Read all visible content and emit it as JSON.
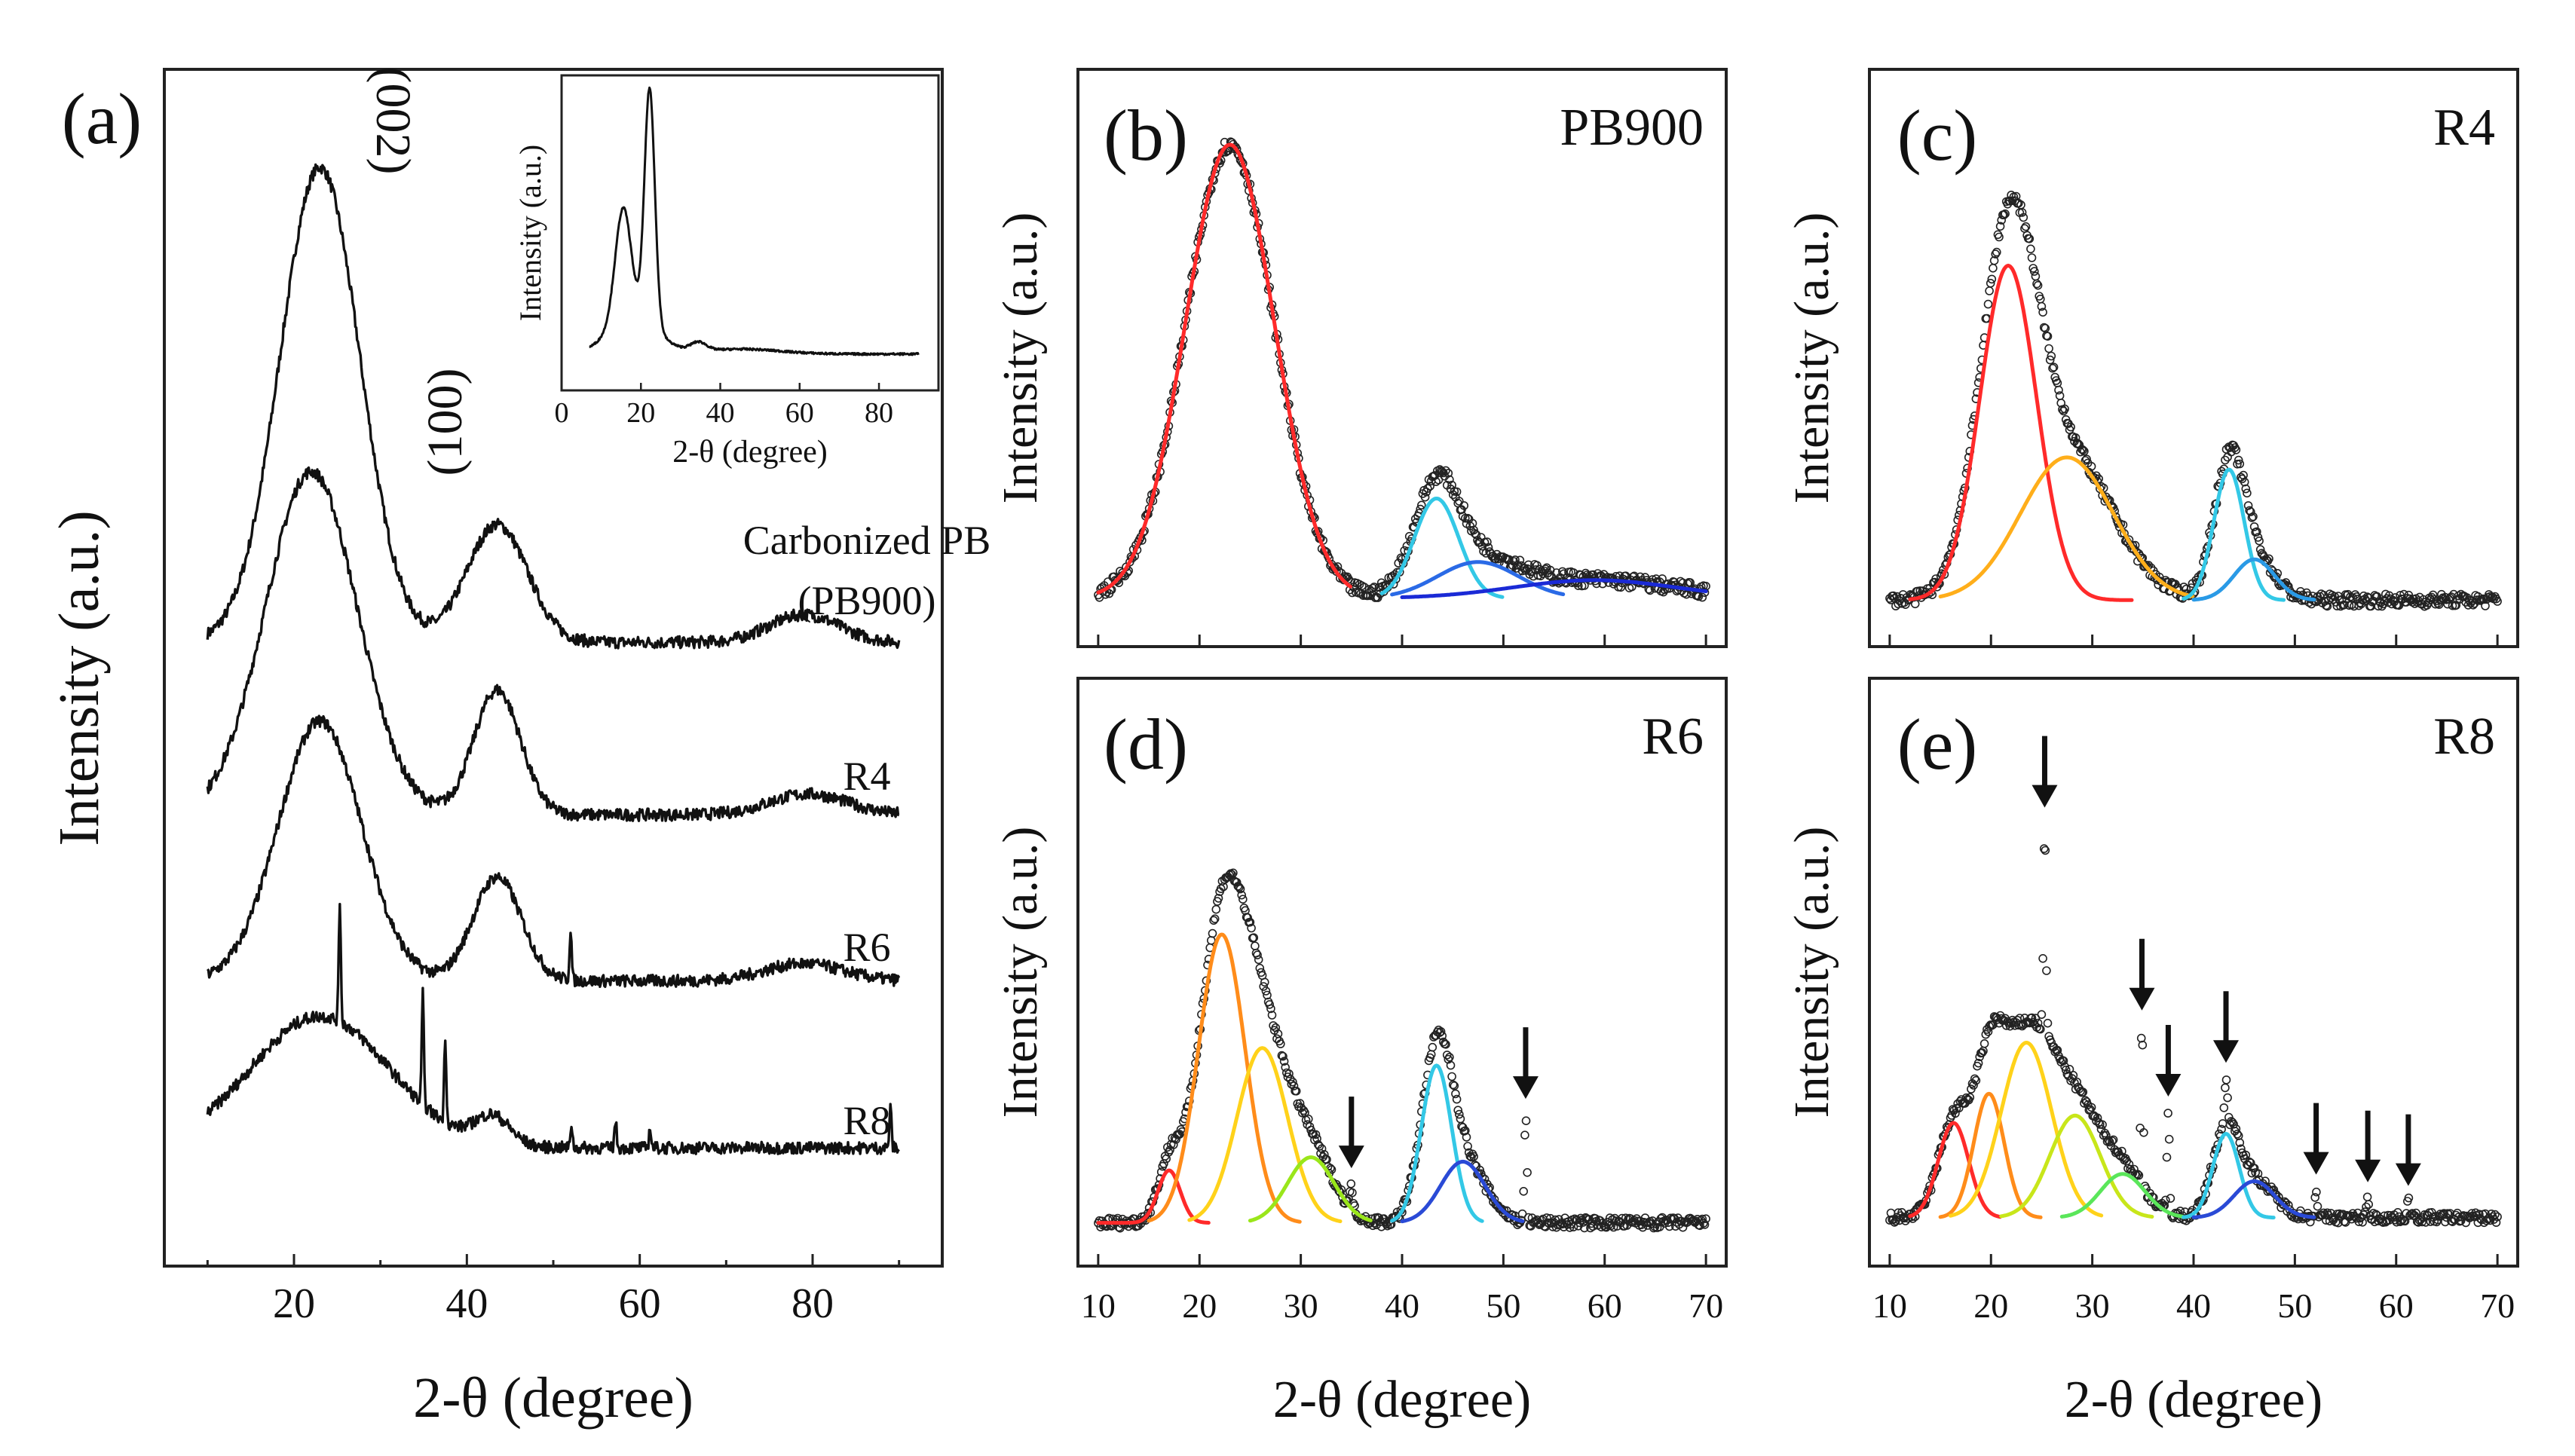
{
  "chart_data": [
    {
      "panel": "(a)",
      "type": "line",
      "xlabel": "2-θ (degree)",
      "ylabel": "Intensity (a.u.)",
      "xlim": [
        5,
        95
      ],
      "xticks": [
        20,
        40,
        60,
        80
      ],
      "peak_labels": [
        {
          "text": "(002)",
          "x": 22
        },
        {
          "text": "(100)",
          "x": 43
        }
      ],
      "series": [
        {
          "name": "PB900",
          "label_lines": [
            "Carbonized PB",
            "(PB900)"
          ],
          "x_range": [
            10,
            90
          ],
          "base": 0.6,
          "peaks": [
            [
              23,
              13.7,
              4.6
            ],
            [
              43.5,
              3.4,
              3.5
            ],
            [
              79,
              0.8,
              4
            ]
          ]
        },
        {
          "name": "R4",
          "label_lines": [
            "R4"
          ],
          "x_range": [
            10,
            90
          ],
          "base": 0.3,
          "peaks": [
            [
              22,
              9.9,
              5.3
            ],
            [
              43.5,
              3.6,
              2.7
            ],
            [
              79.5,
              0.6,
              4.5
            ]
          ]
        },
        {
          "name": "R6",
          "label_lines": [
            "R6"
          ],
          "x_range": [
            10,
            90
          ],
          "base": 0.4,
          "peaks": [
            [
              23,
              7.5,
              4.8
            ],
            [
              43.5,
              3.0,
              2.8
            ],
            [
              79,
              0.5,
              4.5
            ]
          ],
          "spikes": [
            [
              52,
              1.5
            ]
          ]
        },
        {
          "name": "R8",
          "label_lines": [
            "R8"
          ],
          "x_range": [
            10,
            90
          ],
          "base": 0.8,
          "peaks": [
            [
              23,
              3.8,
              8
            ],
            [
              43,
              0.8,
              2
            ]
          ],
          "spikes": [
            [
              25.3,
              3.5
            ],
            [
              34.9,
              3.2
            ],
            [
              37.5,
              2.5
            ],
            [
              52.1,
              0.7
            ],
            [
              57.2,
              0.8
            ],
            [
              61.2,
              0.6
            ],
            [
              89,
              1.2
            ]
          ]
        }
      ],
      "inset": {
        "xlabel": "2-θ (degree)",
        "ylabel": "Intensity (a.u.)",
        "xlim": [
          0,
          95
        ],
        "xticks": [
          0,
          20,
          40,
          60,
          80
        ],
        "base": 0.04,
        "peaks": [
          [
            15.5,
            0.45,
            2
          ],
          [
            22.2,
            0.95,
            1.3
          ],
          [
            18,
            0.15,
            6
          ],
          [
            34.5,
            0.035,
            2
          ],
          [
            45,
            0.02,
            10
          ]
        ]
      }
    },
    {
      "panel": "(b)",
      "type": "line",
      "title": "PB900",
      "ylabel": "Intensity (a.u.)",
      "xlim": [
        8,
        72
      ],
      "raw": {
        "x_range": [
          10,
          70
        ],
        "base": 0.04,
        "peaks": [
          [
            23,
            1.0,
            4.4
          ],
          [
            43.4,
            0.22,
            2.2
          ],
          [
            47.5,
            0.08,
            4
          ],
          [
            59,
            0.04,
            8
          ]
        ]
      },
      "fits": [
        {
          "name": "fit-1",
          "color": "#ff2a2a",
          "center": 23,
          "height": 1.0,
          "width": 4.4,
          "x_range": [
            10,
            35
          ]
        },
        {
          "name": "fit-2",
          "color": "#33c8e6",
          "center": 43.4,
          "height": 0.22,
          "width": 2.2,
          "x_range": [
            38,
            50
          ]
        },
        {
          "name": "fit-3",
          "color": "#2a6ae6",
          "center": 47.5,
          "height": 0.08,
          "width": 4,
          "x_range": [
            39,
            56
          ]
        },
        {
          "name": "fit-4",
          "color": "#1a2ad6",
          "center": 59,
          "height": 0.04,
          "width": 8,
          "x_range": [
            40,
            70
          ]
        }
      ]
    },
    {
      "panel": "(c)",
      "type": "line",
      "title": "R4",
      "ylabel": "Intensity (a.u.)",
      "xlim": [
        8,
        72
      ],
      "raw": {
        "x_range": [
          10,
          70
        ],
        "base": 0.04,
        "peaks": [
          [
            21.7,
            0.82,
            2.8
          ],
          [
            27.5,
            0.35,
            4.6
          ],
          [
            43.5,
            0.32,
            1.5
          ],
          [
            46,
            0.1,
            2
          ]
        ]
      },
      "fits": [
        {
          "name": "fit-1",
          "color": "#ff2a2a",
          "center": 21.7,
          "height": 0.82,
          "width": 2.8,
          "x_range": [
            12,
            34
          ]
        },
        {
          "name": "fit-2",
          "color": "#ffae1a",
          "center": 27.5,
          "height": 0.35,
          "width": 4.6,
          "x_range": [
            15,
            40
          ]
        },
        {
          "name": "fit-3",
          "color": "#33c8e6",
          "center": 43.5,
          "height": 0.32,
          "width": 1.5,
          "x_range": [
            39,
            49
          ]
        },
        {
          "name": "fit-4",
          "color": "#2a9ae6",
          "center": 46,
          "height": 0.1,
          "width": 2,
          "x_range": [
            40,
            52
          ]
        }
      ]
    },
    {
      "panel": "(d)",
      "type": "line",
      "title": "R6",
      "xlabel": "2-θ (degree)",
      "ylabel": "Intensity (a.u.)",
      "xlim": [
        8,
        72
      ],
      "xticks": [
        10,
        20,
        30,
        40,
        50,
        60,
        70
      ],
      "raw": {
        "x_range": [
          10,
          70
        ],
        "base": 0.03,
        "peaks": [
          [
            17,
            0.12,
            1.1
          ],
          [
            22.2,
            0.66,
            2.3
          ],
          [
            26.2,
            0.4,
            2.5
          ],
          [
            31,
            0.15,
            2.3
          ],
          [
            43.4,
            0.36,
            1.5
          ],
          [
            46,
            0.14,
            2.2
          ]
        ],
        "spikes": [
          [
            35,
            0.06
          ],
          [
            52.2,
            0.25
          ]
        ]
      },
      "fits": [
        {
          "name": "fit-1",
          "color": "#ff2a2a",
          "center": 17,
          "height": 0.12,
          "width": 1.1,
          "x_range": [
            10,
            21
          ]
        },
        {
          "name": "fit-2",
          "color": "#ff8c1a",
          "center": 22.2,
          "height": 0.66,
          "width": 2.3,
          "x_range": [
            15,
            30
          ]
        },
        {
          "name": "fit-3",
          "color": "#ffd21a",
          "center": 26.2,
          "height": 0.4,
          "width": 2.5,
          "x_range": [
            19,
            34
          ]
        },
        {
          "name": "fit-4",
          "color": "#9ae61a",
          "center": 31,
          "height": 0.15,
          "width": 2.3,
          "x_range": [
            25,
            37
          ]
        },
        {
          "name": "fit-5",
          "color": "#33c8e6",
          "center": 43.4,
          "height": 0.36,
          "width": 1.5,
          "x_range": [
            39,
            48
          ]
        },
        {
          "name": "fit-6",
          "color": "#2a4ad6",
          "center": 46,
          "height": 0.14,
          "width": 2.2,
          "x_range": [
            40,
            52
          ]
        }
      ],
      "arrows": [
        35,
        52.2
      ]
    },
    {
      "panel": "(e)",
      "type": "line",
      "title": "R8",
      "xlabel": "2-θ (degree)",
      "ylabel": "Intensity (a.u.)",
      "xlim": [
        8,
        72
      ],
      "xticks": [
        10,
        20,
        30,
        40,
        50,
        60,
        70
      ],
      "raw": {
        "x_range": [
          10,
          70
        ],
        "base": 0.05,
        "peaks": [
          [
            16.3,
            0.26,
            1.5
          ],
          [
            19.8,
            0.34,
            1.5
          ],
          [
            23.5,
            0.48,
            2.5
          ],
          [
            28.3,
            0.28,
            2.5
          ],
          [
            33,
            0.12,
            2.2
          ],
          [
            43.2,
            0.23,
            1.3
          ],
          [
            46,
            0.1,
            2
          ]
        ],
        "spikes": [
          [
            25.3,
            0.58
          ],
          [
            34.9,
            0.44
          ],
          [
            37.5,
            0.28
          ],
          [
            43.2,
            0.12
          ],
          [
            52.1,
            0.08
          ],
          [
            57.2,
            0.06
          ],
          [
            61.2,
            0.05
          ]
        ]
      },
      "fits": [
        {
          "name": "fit-1",
          "color": "#ff2a2a",
          "center": 16.3,
          "height": 0.26,
          "width": 1.5,
          "x_range": [
            12,
            21
          ]
        },
        {
          "name": "fit-2",
          "color": "#ff8c1a",
          "center": 19.8,
          "height": 0.34,
          "width": 1.5,
          "x_range": [
            15,
            25
          ]
        },
        {
          "name": "fit-3",
          "color": "#ffd21a",
          "center": 23.5,
          "height": 0.48,
          "width": 2.5,
          "x_range": [
            16,
            31
          ]
        },
        {
          "name": "fit-4",
          "color": "#c8e61a",
          "center": 28.3,
          "height": 0.28,
          "width": 2.5,
          "x_range": [
            21,
            36
          ]
        },
        {
          "name": "fit-5",
          "color": "#5ae65a",
          "center": 33,
          "height": 0.12,
          "width": 2.2,
          "x_range": [
            27,
            39
          ]
        },
        {
          "name": "fit-6",
          "color": "#33c8e6",
          "center": 43.2,
          "height": 0.23,
          "width": 1.3,
          "x_range": [
            39,
            48
          ]
        },
        {
          "name": "fit-7",
          "color": "#2a4ad6",
          "center": 46,
          "height": 0.1,
          "width": 2,
          "x_range": [
            40,
            52
          ]
        }
      ],
      "arrows": [
        25.3,
        34.9,
        37.5,
        43.2,
        52.1,
        57.2,
        61.2
      ]
    }
  ]
}
